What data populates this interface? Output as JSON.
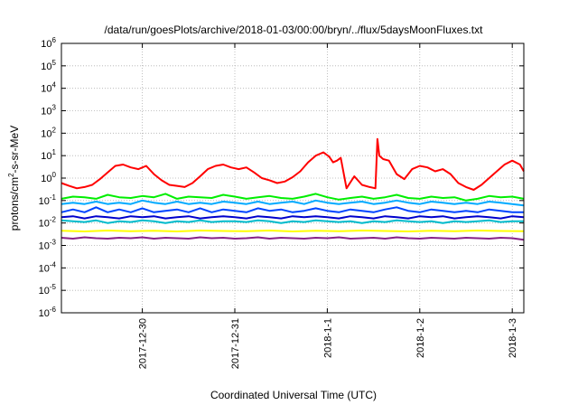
{
  "chart_data": {
    "type": "line",
    "title": "/data/run/goesPlots/archive/2018-01-03/00:00/bryn/../flux/5daysMoonFluxes.txt",
    "xlabel": "Coordinated Universal Time (UTC)",
    "ylabel_parts": {
      "base": "protons/cm",
      "exp": "2",
      "rest": "-s-sr-MeV"
    },
    "yscale": "log",
    "ylim": [
      1e-06,
      1000000.0
    ],
    "xlim": [
      "2017-12-29T03:00",
      "2018-01-03T03:00"
    ],
    "grid": true,
    "y_ticks": [
      {
        "base": "10",
        "exp": "6",
        "value": 1000000.0
      },
      {
        "base": "10",
        "exp": "5",
        "value": 100000.0
      },
      {
        "base": "10",
        "exp": "4",
        "value": 10000.0
      },
      {
        "base": "10",
        "exp": "3",
        "value": 1000.0
      },
      {
        "base": "10",
        "exp": "2",
        "value": 100.0
      },
      {
        "base": "10",
        "exp": "1",
        "value": 10.0
      },
      {
        "base": "10",
        "exp": "0",
        "value": 1
      },
      {
        "base": "10",
        "exp": "-1",
        "value": 0.1
      },
      {
        "base": "10",
        "exp": "-2",
        "value": 0.01
      },
      {
        "base": "10",
        "exp": "-3",
        "value": 0.001
      },
      {
        "base": "10",
        "exp": "-4",
        "value": 0.0001
      },
      {
        "base": "10",
        "exp": "-5",
        "value": 1e-05
      },
      {
        "base": "10",
        "exp": "-6",
        "value": 1e-06
      }
    ],
    "x_ticks": [
      {
        "label": "2017-12-30",
        "date": "2017-12-30T00:00"
      },
      {
        "label": "2017-12-31",
        "date": "2017-12-31T00:00"
      },
      {
        "label": "2018-1-1",
        "date": "2018-01-01T00:00"
      },
      {
        "label": "2018-1-2",
        "date": "2018-01-02T00:00"
      },
      {
        "label": "2018-1-3",
        "date": "2018-01-03T00:00"
      }
    ],
    "series": [
      {
        "color": "#ff0000",
        "x": [
          "2017-12-29T03:00",
          "2017-12-29T05:00",
          "2017-12-29T07:00",
          "2017-12-29T09:00",
          "2017-12-29T11:00",
          "2017-12-29T13:00",
          "2017-12-29T15:00",
          "2017-12-29T17:00",
          "2017-12-29T19:00",
          "2017-12-29T21:00",
          "2017-12-29T23:00",
          "2017-12-30T01:00",
          "2017-12-30T03:00",
          "2017-12-30T05:00",
          "2017-12-30T07:00",
          "2017-12-30T09:00",
          "2017-12-30T11:00",
          "2017-12-30T13:00",
          "2017-12-30T15:00",
          "2017-12-30T17:00",
          "2017-12-30T19:00",
          "2017-12-30T21:00",
          "2017-12-30T23:00",
          "2017-12-31T01:00",
          "2017-12-31T03:00",
          "2017-12-31T05:00",
          "2017-12-31T07:00",
          "2017-12-31T09:00",
          "2017-12-31T11:00",
          "2017-12-31T13:00",
          "2017-12-31T15:00",
          "2017-12-31T17:00",
          "2017-12-31T19:00",
          "2017-12-31T21:00",
          "2017-12-31T23:00",
          "2018-01-01T00:30",
          "2018-01-01T01:30",
          "2018-01-01T02:30",
          "2018-01-01T03:30",
          "2018-01-01T05:00",
          "2018-01-01T07:00",
          "2018-01-01T09:00",
          "2018-01-01T11:00",
          "2018-01-01T12:30",
          "2018-01-01T13:00",
          "2018-01-01T13:30",
          "2018-01-01T14:30",
          "2018-01-01T16:00",
          "2018-01-01T18:00",
          "2018-01-01T20:00",
          "2018-01-01T22:00",
          "2018-01-02T00:00",
          "2018-01-02T02:00",
          "2018-01-02T04:00",
          "2018-01-02T06:00",
          "2018-01-02T08:00",
          "2018-01-02T10:00",
          "2018-01-02T12:00",
          "2018-01-02T14:00",
          "2018-01-02T16:00",
          "2018-01-02T18:00",
          "2018-01-02T20:00",
          "2018-01-02T22:00",
          "2018-01-03T00:00",
          "2018-01-03T02:00",
          "2018-01-03T03:00"
        ],
        "y": [
          0.6,
          0.45,
          0.35,
          0.4,
          0.5,
          0.9,
          1.8,
          3.5,
          4.0,
          3.0,
          2.5,
          3.5,
          1.5,
          0.8,
          0.5,
          0.45,
          0.4,
          0.6,
          1.2,
          2.5,
          3.5,
          4.0,
          3.0,
          2.5,
          3.0,
          1.8,
          1.0,
          0.8,
          0.6,
          0.7,
          1.1,
          2.0,
          5.0,
          10.0,
          14.0,
          9.0,
          5.0,
          6.0,
          8.0,
          0.35,
          1.2,
          0.5,
          0.4,
          0.35,
          55.0,
          10.0,
          7.0,
          6.0,
          1.5,
          0.9,
          2.5,
          3.5,
          3.0,
          2.0,
          2.5,
          1.5,
          0.6,
          0.4,
          0.3,
          0.5,
          1.0,
          2.0,
          4.0,
          6.0,
          4.0,
          2.0
        ]
      },
      {
        "color": "#00ee00",
        "x": [
          "2017-12-29T03:00",
          "2017-12-29T06:00",
          "2017-12-29T09:00",
          "2017-12-29T12:00",
          "2017-12-29T15:00",
          "2017-12-29T18:00",
          "2017-12-29T21:00",
          "2017-12-30T00:00",
          "2017-12-30T03:00",
          "2017-12-30T06:00",
          "2017-12-30T09:00",
          "2017-12-30T12:00",
          "2017-12-30T15:00",
          "2017-12-30T18:00",
          "2017-12-30T21:00",
          "2017-12-31T00:00",
          "2017-12-31T03:00",
          "2017-12-31T06:00",
          "2017-12-31T09:00",
          "2017-12-31T12:00",
          "2017-12-31T15:00",
          "2017-12-31T18:00",
          "2017-12-31T21:00",
          "2018-01-01T00:00",
          "2018-01-01T03:00",
          "2018-01-01T06:00",
          "2018-01-01T09:00",
          "2018-01-01T12:00",
          "2018-01-01T15:00",
          "2018-01-01T18:00",
          "2018-01-01T21:00",
          "2018-01-02T00:00",
          "2018-01-02T03:00",
          "2018-01-02T06:00",
          "2018-01-02T09:00",
          "2018-01-02T12:00",
          "2018-01-02T15:00",
          "2018-01-02T18:00",
          "2018-01-02T21:00",
          "2018-01-03T00:00",
          "2018-01-03T03:00"
        ],
        "y": [
          0.12,
          0.15,
          0.14,
          0.12,
          0.18,
          0.14,
          0.13,
          0.16,
          0.14,
          0.2,
          0.12,
          0.15,
          0.14,
          0.13,
          0.18,
          0.15,
          0.12,
          0.14,
          0.16,
          0.13,
          0.12,
          0.15,
          0.2,
          0.14,
          0.11,
          0.13,
          0.15,
          0.12,
          0.14,
          0.18,
          0.13,
          0.12,
          0.15,
          0.13,
          0.14,
          0.1,
          0.12,
          0.16,
          0.14,
          0.15,
          0.12
        ]
      },
      {
        "color": "#00aaff",
        "x": [
          "2017-12-29T03:00",
          "2017-12-29T06:00",
          "2017-12-29T09:00",
          "2017-12-29T12:00",
          "2017-12-29T15:00",
          "2017-12-29T18:00",
          "2017-12-29T21:00",
          "2017-12-30T00:00",
          "2017-12-30T03:00",
          "2017-12-30T06:00",
          "2017-12-30T09:00",
          "2017-12-30T12:00",
          "2017-12-30T15:00",
          "2017-12-30T18:00",
          "2017-12-30T21:00",
          "2017-12-31T00:00",
          "2017-12-31T03:00",
          "2017-12-31T06:00",
          "2017-12-31T09:00",
          "2017-12-31T12:00",
          "2017-12-31T15:00",
          "2017-12-31T18:00",
          "2017-12-31T21:00",
          "2018-01-01T00:00",
          "2018-01-01T03:00",
          "2018-01-01T06:00",
          "2018-01-01T09:00",
          "2018-01-01T12:00",
          "2018-01-01T15:00",
          "2018-01-01T18:00",
          "2018-01-01T21:00",
          "2018-01-02T00:00",
          "2018-01-02T03:00",
          "2018-01-02T06:00",
          "2018-01-02T09:00",
          "2018-01-02T12:00",
          "2018-01-02T15:00",
          "2018-01-02T18:00",
          "2018-01-02T21:00",
          "2018-01-03T00:00",
          "2018-01-03T03:00"
        ],
        "y": [
          0.07,
          0.08,
          0.07,
          0.09,
          0.07,
          0.08,
          0.07,
          0.1,
          0.08,
          0.07,
          0.09,
          0.07,
          0.08,
          0.07,
          0.09,
          0.08,
          0.07,
          0.09,
          0.07,
          0.08,
          0.09,
          0.07,
          0.1,
          0.08,
          0.07,
          0.08,
          0.09,
          0.07,
          0.08,
          0.1,
          0.08,
          0.07,
          0.09,
          0.08,
          0.07,
          0.08,
          0.07,
          0.09,
          0.08,
          0.07,
          0.06
        ]
      },
      {
        "color": "#0044ff",
        "x": [
          "2017-12-29T03:00",
          "2017-12-29T06:00",
          "2017-12-29T09:00",
          "2017-12-29T12:00",
          "2017-12-29T15:00",
          "2017-12-29T18:00",
          "2017-12-29T21:00",
          "2017-12-30T00:00",
          "2017-12-30T03:00",
          "2017-12-30T06:00",
          "2017-12-30T09:00",
          "2017-12-30T12:00",
          "2017-12-30T15:00",
          "2017-12-30T18:00",
          "2017-12-30T21:00",
          "2017-12-31T00:00",
          "2017-12-31T03:00",
          "2017-12-31T06:00",
          "2017-12-31T09:00",
          "2017-12-31T12:00",
          "2017-12-31T15:00",
          "2017-12-31T18:00",
          "2017-12-31T21:00",
          "2018-01-01T00:00",
          "2018-01-01T03:00",
          "2018-01-01T06:00",
          "2018-01-01T09:00",
          "2018-01-01T12:00",
          "2018-01-01T15:00",
          "2018-01-01T18:00",
          "2018-01-01T21:00",
          "2018-01-02T00:00",
          "2018-01-02T03:00",
          "2018-01-02T06:00",
          "2018-01-02T09:00",
          "2018-01-02T12:00",
          "2018-01-02T15:00",
          "2018-01-02T18:00",
          "2018-01-02T21:00",
          "2018-01-03T00:00",
          "2018-01-03T03:00"
        ],
        "y": [
          0.03,
          0.04,
          0.03,
          0.05,
          0.03,
          0.04,
          0.03,
          0.045,
          0.03,
          0.035,
          0.04,
          0.03,
          0.045,
          0.03,
          0.04,
          0.035,
          0.03,
          0.045,
          0.035,
          0.04,
          0.03,
          0.035,
          0.045,
          0.035,
          0.03,
          0.04,
          0.035,
          0.03,
          0.04,
          0.05,
          0.035,
          0.03,
          0.04,
          0.035,
          0.03,
          0.035,
          0.03,
          0.04,
          0.035,
          0.03,
          0.03
        ]
      },
      {
        "color": "#00bbcc",
        "x": [
          "2017-12-29T03:00",
          "2017-12-29T06:00",
          "2017-12-29T09:00",
          "2017-12-29T12:00",
          "2017-12-29T15:00",
          "2017-12-29T18:00",
          "2017-12-29T21:00",
          "2017-12-30T00:00",
          "2017-12-30T03:00",
          "2017-12-30T06:00",
          "2017-12-30T09:00",
          "2017-12-30T12:00",
          "2017-12-30T15:00",
          "2017-12-30T18:00",
          "2017-12-30T21:00",
          "2017-12-31T00:00",
          "2017-12-31T03:00",
          "2017-12-31T06:00",
          "2017-12-31T09:00",
          "2017-12-31T12:00",
          "2017-12-31T15:00",
          "2017-12-31T18:00",
          "2017-12-31T21:00",
          "2018-01-01T00:00",
          "2018-01-01T03:00",
          "2018-01-01T06:00",
          "2018-01-01T09:00",
          "2018-01-01T12:00",
          "2018-01-01T15:00",
          "2018-01-01T18:00",
          "2018-01-01T21:00",
          "2018-01-02T00:00",
          "2018-01-02T03:00",
          "2018-01-02T06:00",
          "2018-01-02T09:00",
          "2018-01-02T12:00",
          "2018-01-02T15:00",
          "2018-01-02T18:00",
          "2018-01-02T21:00",
          "2018-01-03T00:00",
          "2018-01-03T03:00"
        ],
        "y": [
          0.013,
          0.012,
          0.011,
          0.013,
          0.01,
          0.012,
          0.011,
          0.013,
          0.012,
          0.01,
          0.012,
          0.011,
          0.013,
          0.011,
          0.012,
          0.012,
          0.011,
          0.013,
          0.012,
          0.01,
          0.012,
          0.011,
          0.013,
          0.012,
          0.011,
          0.012,
          0.01,
          0.012,
          0.011,
          0.013,
          0.012,
          0.011,
          0.012,
          0.01,
          0.012,
          0.011,
          0.012,
          0.013,
          0.011,
          0.012,
          0.012
        ]
      },
      {
        "color": "#0000cc",
        "x": [
          "2017-12-29T03:00",
          "2017-12-29T06:00",
          "2017-12-29T09:00",
          "2017-12-29T12:00",
          "2017-12-29T15:00",
          "2017-12-29T18:00",
          "2017-12-29T21:00",
          "2017-12-30T00:00",
          "2017-12-30T03:00",
          "2017-12-30T06:00",
          "2017-12-30T09:00",
          "2017-12-30T12:00",
          "2017-12-30T15:00",
          "2017-12-30T18:00",
          "2017-12-30T21:00",
          "2017-12-31T00:00",
          "2017-12-31T03:00",
          "2017-12-31T06:00",
          "2017-12-31T09:00",
          "2017-12-31T12:00",
          "2017-12-31T15:00",
          "2017-12-31T18:00",
          "2017-12-31T21:00",
          "2018-01-01T00:00",
          "2018-01-01T03:00",
          "2018-01-01T06:00",
          "2018-01-01T09:00",
          "2018-01-01T12:00",
          "2018-01-01T15:00",
          "2018-01-01T18:00",
          "2018-01-01T21:00",
          "2018-01-02T00:00",
          "2018-01-02T03:00",
          "2018-01-02T06:00",
          "2018-01-02T09:00",
          "2018-01-02T12:00",
          "2018-01-02T15:00",
          "2018-01-02T18:00",
          "2018-01-02T21:00",
          "2018-01-03T00:00",
          "2018-01-03T03:00"
        ],
        "y": [
          0.018,
          0.02,
          0.016,
          0.02,
          0.018,
          0.016,
          0.02,
          0.018,
          0.02,
          0.016,
          0.018,
          0.02,
          0.016,
          0.018,
          0.02,
          0.018,
          0.016,
          0.02,
          0.018,
          0.016,
          0.02,
          0.018,
          0.02,
          0.018,
          0.016,
          0.02,
          0.018,
          0.016,
          0.02,
          0.018,
          0.016,
          0.02,
          0.018,
          0.02,
          0.016,
          0.018,
          0.02,
          0.018,
          0.016,
          0.02,
          0.018
        ]
      },
      {
        "color": "#ffff00",
        "x": [
          "2017-12-29T03:00",
          "2017-12-29T09:00",
          "2017-12-29T15:00",
          "2017-12-29T21:00",
          "2017-12-30T03:00",
          "2017-12-30T09:00",
          "2017-12-30T15:00",
          "2017-12-30T21:00",
          "2017-12-31T03:00",
          "2017-12-31T09:00",
          "2017-12-31T15:00",
          "2017-12-31T21:00",
          "2018-01-01T03:00",
          "2018-01-01T09:00",
          "2018-01-01T15:00",
          "2018-01-01T21:00",
          "2018-01-02T03:00",
          "2018-01-02T09:00",
          "2018-01-02T15:00",
          "2018-01-02T21:00",
          "2018-01-03T03:00"
        ],
        "y": [
          0.0045,
          0.0042,
          0.0046,
          0.0043,
          0.0045,
          0.0042,
          0.0046,
          0.0044,
          0.0043,
          0.0046,
          0.0042,
          0.0045,
          0.0043,
          0.0046,
          0.0044,
          0.0042,
          0.0045,
          0.0043,
          0.0046,
          0.0044,
          0.0043
        ]
      },
      {
        "color": "#882288",
        "x": [
          "2017-12-29T03:00",
          "2017-12-29T06:00",
          "2017-12-29T09:00",
          "2017-12-29T12:00",
          "2017-12-29T15:00",
          "2017-12-29T18:00",
          "2017-12-29T21:00",
          "2017-12-30T00:00",
          "2017-12-30T03:00",
          "2017-12-30T06:00",
          "2017-12-30T09:00",
          "2017-12-30T12:00",
          "2017-12-30T15:00",
          "2017-12-30T18:00",
          "2017-12-30T21:00",
          "2017-12-31T00:00",
          "2017-12-31T03:00",
          "2017-12-31T06:00",
          "2017-12-31T09:00",
          "2017-12-31T12:00",
          "2017-12-31T15:00",
          "2017-12-31T18:00",
          "2017-12-31T21:00",
          "2018-01-01T00:00",
          "2018-01-01T03:00",
          "2018-01-01T06:00",
          "2018-01-01T09:00",
          "2018-01-01T12:00",
          "2018-01-01T15:00",
          "2018-01-01T18:00",
          "2018-01-01T21:00",
          "2018-01-02T00:00",
          "2018-01-02T03:00",
          "2018-01-02T06:00",
          "2018-01-02T09:00",
          "2018-01-02T12:00",
          "2018-01-02T15:00",
          "2018-01-02T18:00",
          "2018-01-02T21:00",
          "2018-01-03T00:00",
          "2018-01-03T03:00"
        ],
        "y": [
          0.0022,
          0.002,
          0.0023,
          0.0021,
          0.002,
          0.0022,
          0.0021,
          0.0023,
          0.002,
          0.0022,
          0.0021,
          0.002,
          0.0023,
          0.0021,
          0.0022,
          0.002,
          0.0021,
          0.0023,
          0.002,
          0.0022,
          0.0021,
          0.002,
          0.0022,
          0.0021,
          0.0023,
          0.002,
          0.0021,
          0.0022,
          0.002,
          0.0023,
          0.0021,
          0.002,
          0.0022,
          0.0021,
          0.002,
          0.0022,
          0.0021,
          0.002,
          0.0022,
          0.0021,
          0.0018
        ]
      }
    ]
  }
}
